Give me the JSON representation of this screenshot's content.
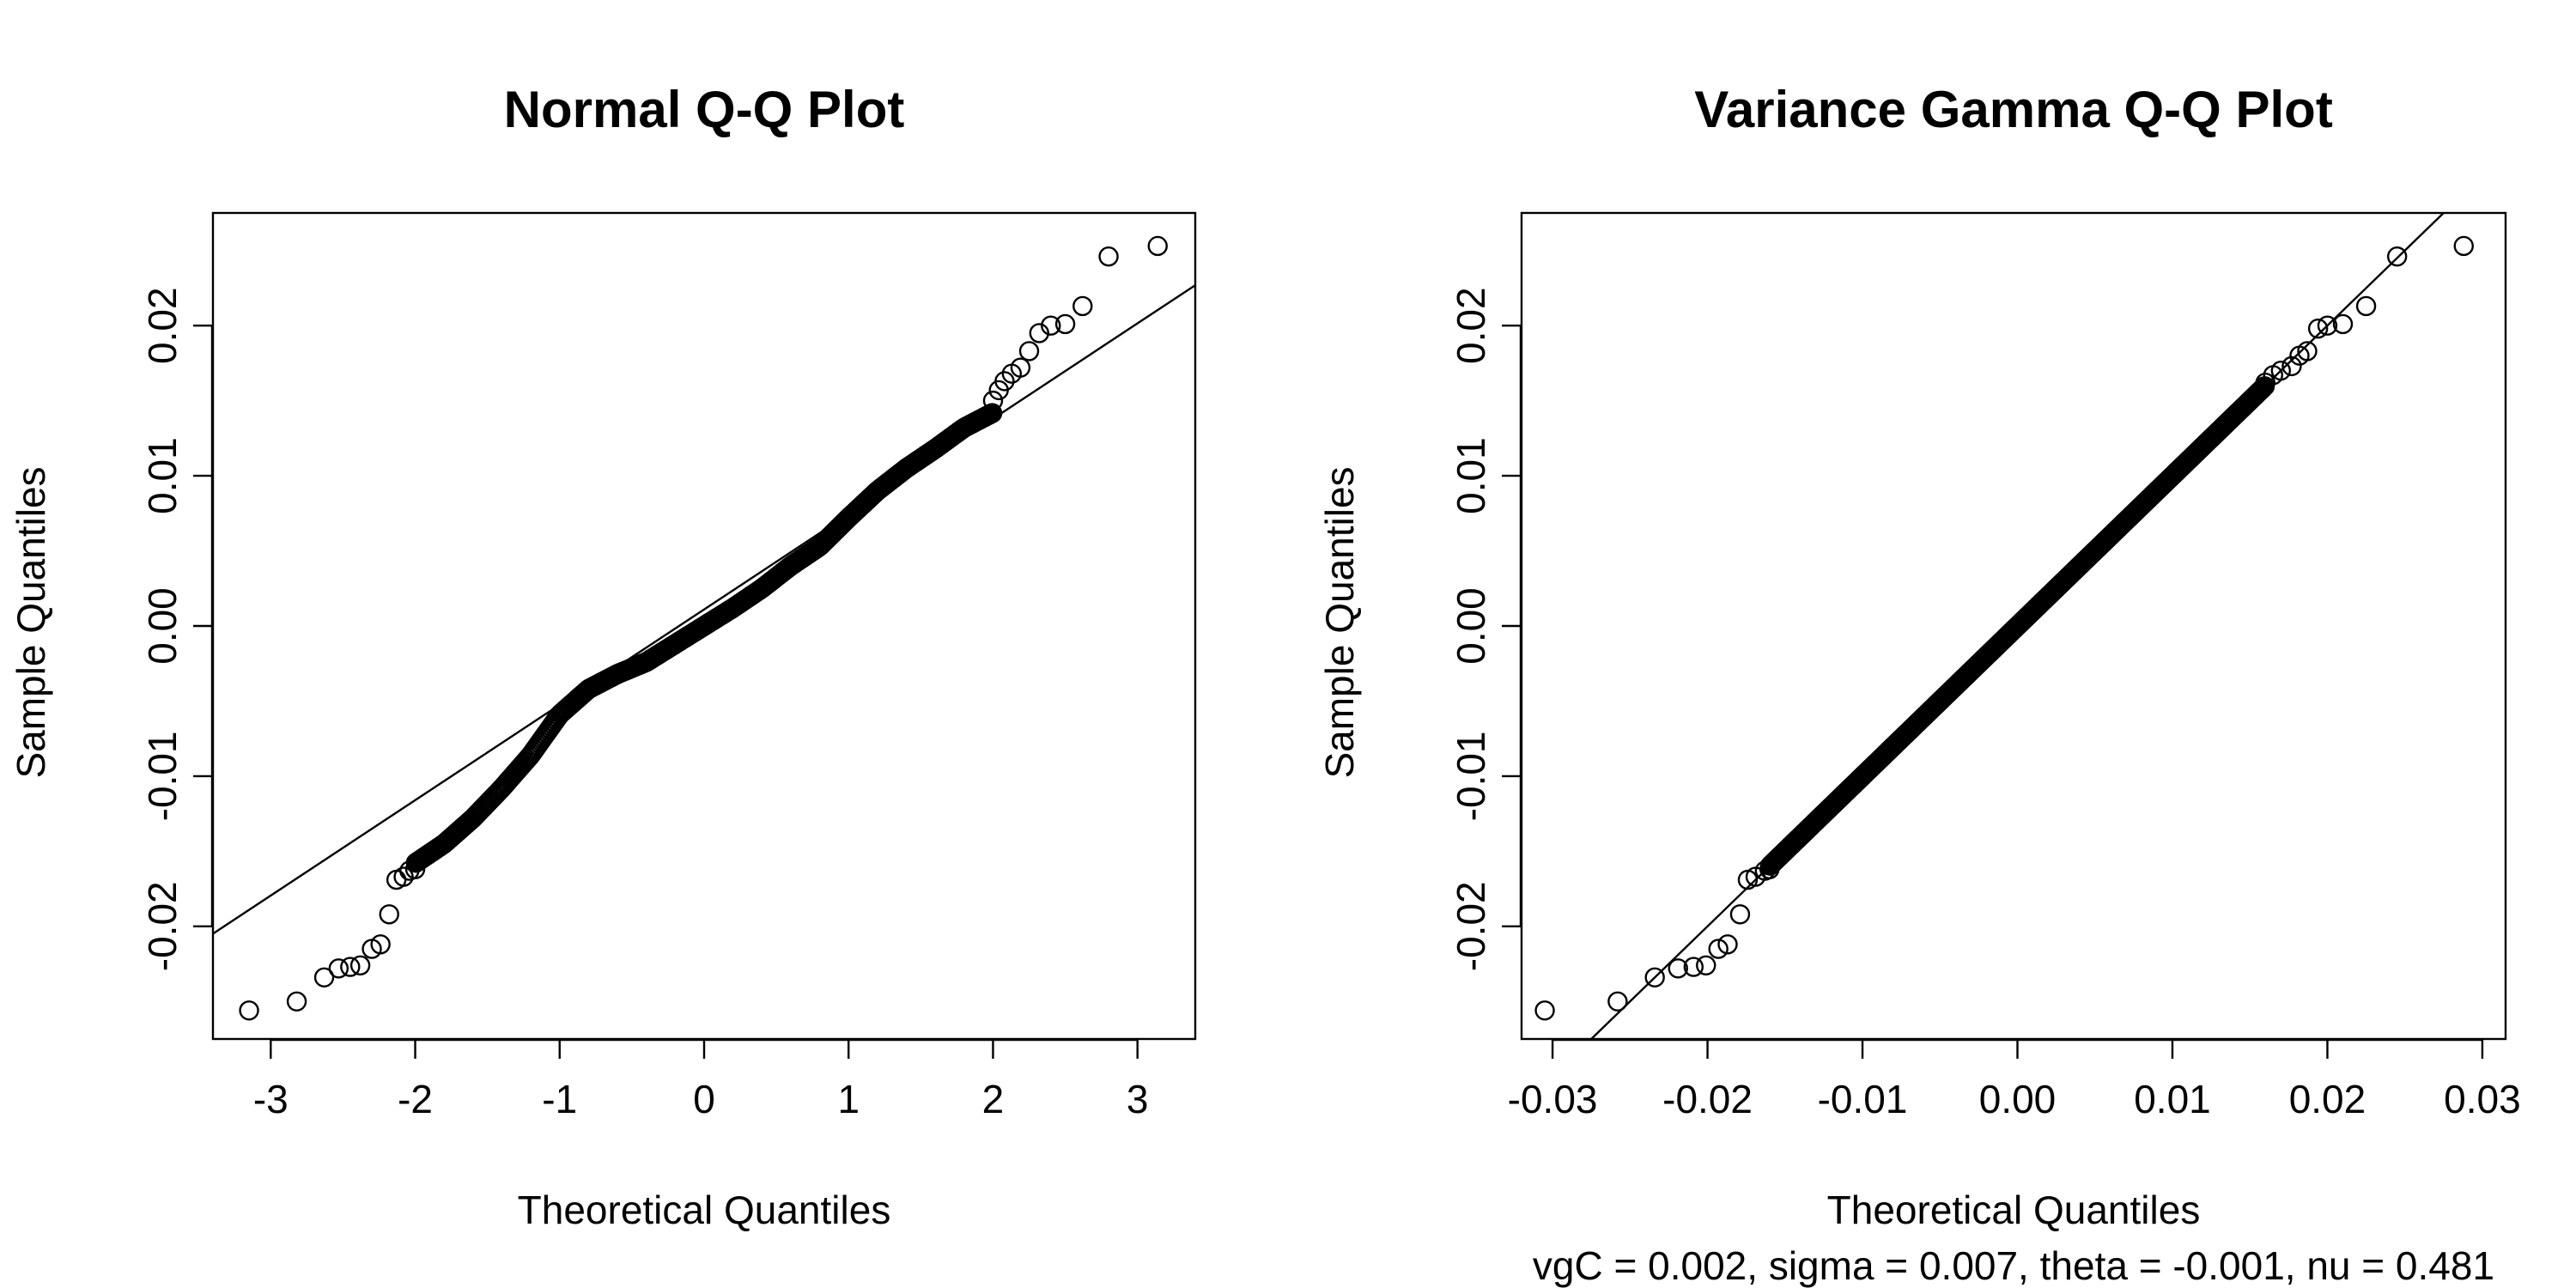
{
  "chart_data": [
    {
      "type": "scatter",
      "title": "Normal Q-Q Plot",
      "xlabel": "Theoretical Quantiles",
      "ylabel": "Sample Quantiles",
      "subtitle": "",
      "xlim": [
        -3.4,
        3.4
      ],
      "ylim": [
        -0.0275,
        0.0275
      ],
      "xticks": [
        -3,
        -2,
        -1,
        0,
        1,
        2,
        3
      ],
      "xtick_labels": [
        "-3",
        "-2",
        "-1",
        "0",
        "1",
        "2",
        "3"
      ],
      "yticks": [
        -0.02,
        -0.01,
        0.0,
        0.01,
        0.02
      ],
      "ytick_labels": [
        "-0.02",
        "-0.01",
        "0.00",
        "0.01",
        "0.02"
      ],
      "reference_line": {
        "intercept": 0.0011,
        "slope": 0.00635
      },
      "tail_points": {
        "x": [
          -3.15,
          -2.82,
          -2.63,
          -2.53,
          -2.45,
          -2.38,
          -2.3,
          -2.24,
          -2.18,
          -2.13,
          -2.08,
          -2.04,
          -2.0,
          2.0,
          2.04,
          2.08,
          2.13,
          2.19,
          2.25,
          2.32,
          2.4,
          2.5,
          2.62,
          2.8,
          3.14
        ],
        "y": [
          -0.0256,
          -0.025,
          -0.0234,
          -0.0228,
          -0.0227,
          -0.0226,
          -0.0215,
          -0.0212,
          -0.0192,
          -0.0169,
          -0.0167,
          -0.0163,
          -0.0162,
          0.015,
          0.0157,
          0.0163,
          0.0168,
          0.0172,
          0.0183,
          0.0195,
          0.02,
          0.0201,
          0.0213,
          0.0246,
          0.0253
        ]
      },
      "body_curve": {
        "x": [
          -2.0,
          -1.8,
          -1.6,
          -1.4,
          -1.2,
          -1.0,
          -0.8,
          -0.6,
          -0.4,
          -0.2,
          0.0,
          0.2,
          0.4,
          0.6,
          0.8,
          1.0,
          1.2,
          1.4,
          1.6,
          1.8,
          2.0
        ],
        "y": [
          -0.0158,
          -0.0145,
          -0.0128,
          -0.0108,
          -0.0086,
          -0.0059,
          -0.0042,
          -0.0032,
          -0.0024,
          -0.0012,
          0.0,
          0.0012,
          0.0025,
          0.004,
          0.0053,
          0.0072,
          0.009,
          0.0105,
          0.0118,
          0.0132,
          0.0142
        ]
      },
      "n_points": 500
    },
    {
      "type": "scatter",
      "title": "Variance Gamma Q-Q Plot",
      "xlabel": "Theoretical Quantiles",
      "ylabel": "Sample Quantiles",
      "subtitle": "vgC = 0.002, sigma = 0.007, theta = -0.001, nu = 0.481",
      "xlim": [
        -0.032,
        0.0315
      ],
      "ylim": [
        -0.0275,
        0.0275
      ],
      "xticks": [
        -0.03,
        -0.02,
        -0.01,
        0.0,
        0.01,
        0.02,
        0.03
      ],
      "xtick_labels": [
        "-0.03",
        "-0.02",
        "-0.01",
        "0.00",
        "0.01",
        "0.02",
        "0.03"
      ],
      "yticks": [
        -0.02,
        -0.01,
        0.0,
        0.01,
        0.02
      ],
      "ytick_labels": [
        "-0.02",
        "-0.01",
        "0.00",
        "0.01",
        "0.02"
      ],
      "reference_line": {
        "intercept": 0.0,
        "slope": 1.0
      },
      "tail_points": {
        "x": [
          -0.0305,
          -0.0258,
          -0.0234,
          -0.0219,
          -0.0209,
          -0.0201,
          -0.0193,
          -0.0187,
          -0.0179,
          -0.0174,
          -0.0169,
          -0.0163,
          -0.016,
          0.016,
          0.0165,
          0.017,
          0.0177,
          0.0182,
          0.0187,
          0.0194,
          0.02,
          0.021,
          0.0225,
          0.0245,
          0.0288
        ],
        "y": [
          -0.0256,
          -0.025,
          -0.0234,
          -0.0228,
          -0.0227,
          -0.0226,
          -0.0215,
          -0.0212,
          -0.0192,
          -0.0169,
          -0.0167,
          -0.0163,
          -0.0162,
          0.0162,
          0.0167,
          0.017,
          0.0173,
          0.018,
          0.0183,
          0.0198,
          0.02,
          0.0201,
          0.0213,
          0.0246,
          0.0253
        ]
      },
      "body_curve": {
        "x": [
          -0.016,
          -0.012,
          -0.008,
          -0.004,
          0.0,
          0.004,
          0.008,
          0.012,
          0.016
        ],
        "y": [
          -0.016,
          -0.012,
          -0.008,
          -0.004,
          0.0,
          0.004,
          0.008,
          0.012,
          0.016
        ]
      },
      "n_points": 500
    }
  ]
}
